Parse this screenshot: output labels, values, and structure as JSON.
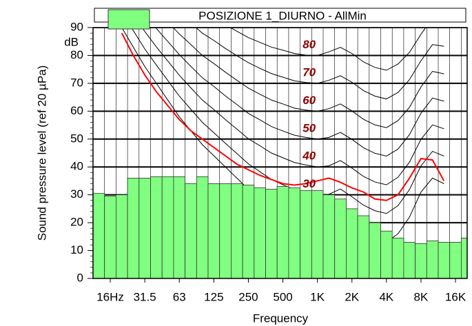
{
  "chart_data": {
    "type": "bar",
    "ylabel": "Sound pressure level (ref 20 µPa)",
    "xlabel": "Frequency",
    "yunit": "dB",
    "categories": [
      null,
      "16Hz",
      null,
      null,
      "31.5",
      null,
      null,
      "63",
      null,
      null,
      "125",
      null,
      null,
      "250",
      null,
      null,
      "500",
      null,
      null,
      "1K",
      null,
      null,
      "2K",
      null,
      null,
      "4K",
      null,
      null,
      "8K",
      null,
      null,
      "16K",
      null
    ],
    "ylim": [
      0,
      90
    ],
    "yticks": [
      0,
      10,
      20,
      30,
      40,
      50,
      60,
      70,
      80,
      90
    ],
    "grid": true,
    "series": [
      {
        "name": "POSIZIONE 1_DIURNO - AllMin",
        "color": "#80ff80",
        "values": [
          30.5,
          29.5,
          30,
          36,
          36,
          36.5,
          36.5,
          36.5,
          34,
          36.5,
          34,
          34,
          34,
          33.5,
          32.5,
          32,
          33,
          32.5,
          31.5,
          31.5,
          30,
          28.5,
          25,
          22.5,
          20,
          17,
          14.5,
          13,
          12.5,
          13.5,
          13,
          13,
          14.5
        ]
      },
      {
        "type": "line",
        "color": "#ff0000",
        "values": [
          null,
          null,
          88,
          80,
          73,
          67,
          62,
          57,
          53,
          50,
          47,
          44,
          41,
          39,
          37,
          35.5,
          34,
          33.5,
          34,
          35,
          36,
          34.5,
          32.5,
          31,
          28.5,
          28,
          30,
          36,
          43,
          42.5,
          35,
          null,
          null
        ]
      }
    ],
    "contours": [
      {
        "color": "#000000",
        "values": [
          null,
          null,
          90,
          83,
          76,
          70,
          64,
          58,
          53,
          48,
          44,
          40,
          36,
          32,
          29,
          26,
          24,
          22,
          21,
          20,
          20,
          22,
          19,
          16,
          14,
          13,
          16,
          22,
          31,
          36,
          34,
          null,
          null
        ]
      },
      {
        "label": "30",
        "color": "#000000",
        "values": [
          null,
          null,
          95.4,
          88.9,
          82.3,
          76.6,
          71,
          65.4,
          60.7,
          56,
          52.3,
          48.5,
          44.8,
          41.1,
          38.3,
          35.5,
          33.6,
          31.8,
          30.9,
          30,
          30.2,
          32.1,
          29.3,
          26.3,
          24.3,
          23.3,
          26.1,
          31.9,
          40.4,
          45.6,
          43.9,
          null,
          null
        ]
      },
      {
        "label": "40",
        "color": "#000000",
        "values": [
          null,
          null,
          100.8,
          94.7,
          88.6,
          83.1,
          78,
          72.9,
          68.4,
          64,
          60.6,
          57,
          53.6,
          50.1,
          47.6,
          45,
          43.3,
          41.6,
          40.7,
          40,
          40.4,
          42.3,
          39.6,
          36.6,
          34.6,
          33.6,
          36.3,
          41.7,
          49.9,
          55.1,
          53.7,
          null,
          null
        ]
      },
      {
        "label": "50",
        "color": "#000000",
        "values": [
          null,
          null,
          106.3,
          100.6,
          94.8,
          89.7,
          85,
          80.3,
          76.1,
          72,
          68.9,
          65.5,
          62.4,
          59.2,
          56.9,
          54.5,
          52.9,
          51.4,
          50.6,
          50,
          50.6,
          52.4,
          49.9,
          46.9,
          44.9,
          43.9,
          46.4,
          51.6,
          59.3,
          64.7,
          63.6,
          null,
          null
        ]
      },
      {
        "label": "60",
        "color": "#000000",
        "values": [
          null,
          null,
          111.7,
          106.4,
          101.2,
          96.3,
          92,
          87.7,
          83.9,
          80,
          77.1,
          74,
          71.1,
          68.3,
          66.1,
          64,
          62.6,
          61.1,
          60.4,
          60,
          60.9,
          62.6,
          60.1,
          57.1,
          55.1,
          54.1,
          56.6,
          61.4,
          68.7,
          74.3,
          73.4,
          null,
          null
        ]
      },
      {
        "label": "70",
        "color": "#000000",
        "values": [
          null,
          null,
          117.2,
          112.3,
          107.4,
          102.9,
          99,
          95.1,
          91.6,
          88,
          85.4,
          82.5,
          79.9,
          77.4,
          75.4,
          73.5,
          72.2,
          70.9,
          70.3,
          70,
          71.1,
          72.7,
          70.4,
          67.4,
          65.4,
          64.4,
          66.7,
          71.3,
          78.1,
          83.9,
          83.3,
          null,
          null
        ]
      },
      {
        "label": "80",
        "color": "#000000",
        "values": [
          null,
          null,
          122.6,
          118.1,
          113.7,
          109.4,
          106,
          102.6,
          99.3,
          96,
          93.7,
          91,
          88.7,
          86.4,
          84.7,
          83,
          81.9,
          80.7,
          80.1,
          80,
          81.3,
          82.9,
          80.7,
          77.7,
          75.7,
          74.7,
          76.9,
          81.1,
          87.6,
          93.4,
          93.1,
          null,
          null
        ]
      }
    ],
    "contour_label_category": 19
  }
}
